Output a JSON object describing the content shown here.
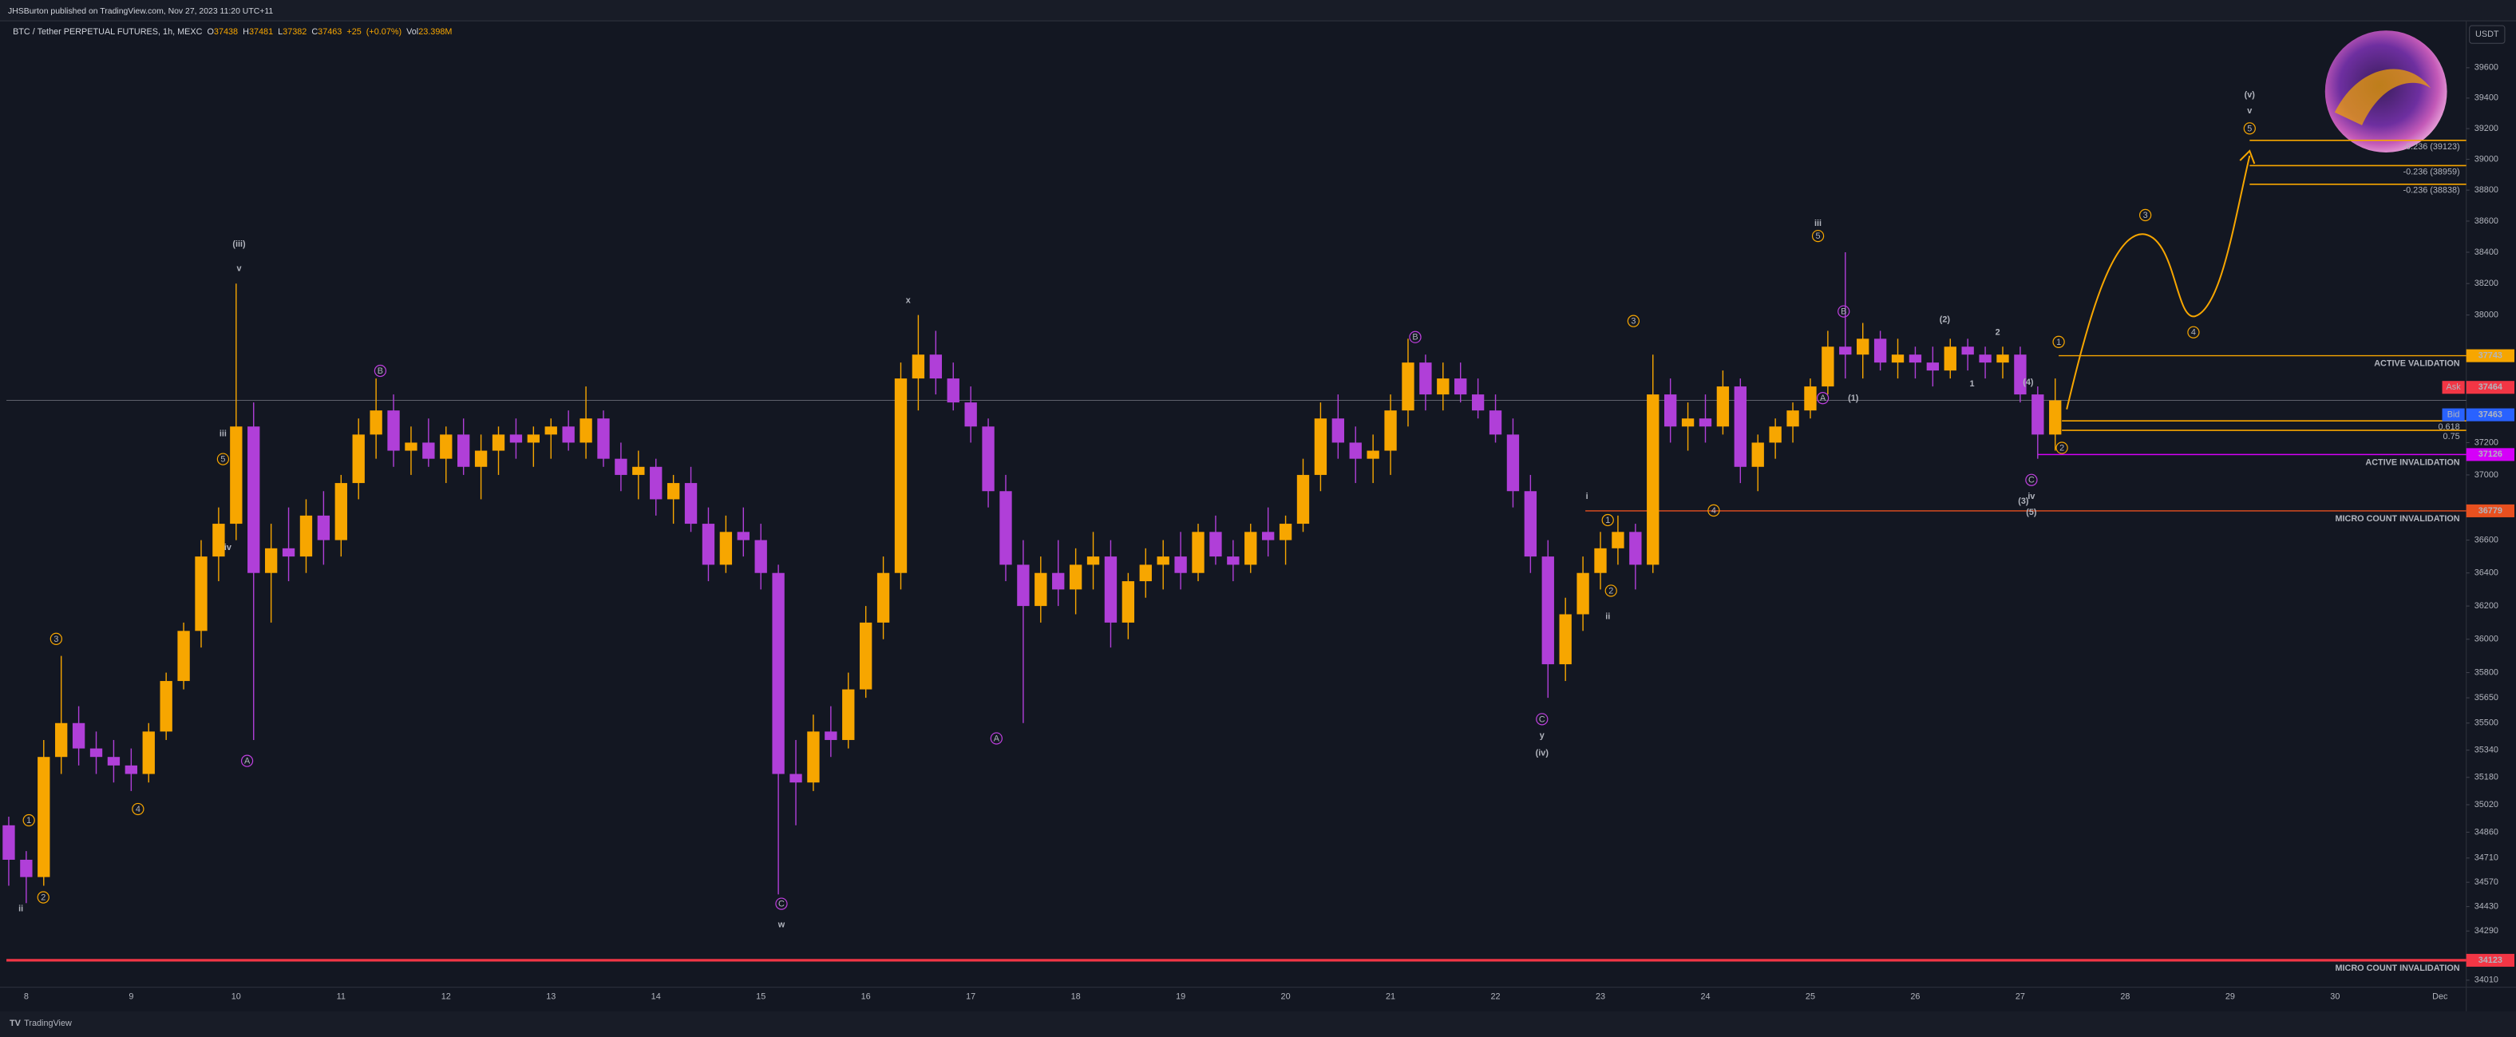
{
  "header": {
    "publisher": "JHSBurton published on TradingView.com, Nov 27, 2023 11:20 UTC+11",
    "brand": "TradingView"
  },
  "chart_data": {
    "type": "candlestick",
    "title": "BTC / Tether PERPETUAL FUTURES, 1h, MEXC",
    "ohlc_legend": [
      {
        "prefix": "O",
        "value": 37438
      },
      {
        "prefix": "H",
        "value": 37481
      },
      {
        "prefix": "L",
        "value": 37382
      },
      {
        "prefix": "C",
        "value": 37463
      },
      {
        "value": 25,
        "label": "+25"
      },
      {
        "value": 0.07,
        "label": "(+0.07%)"
      },
      {
        "prefix": "Vol",
        "value": 23398000,
        "label": "23.398M"
      }
    ],
    "currency": "USDT",
    "up_color": "#f7a600",
    "down_color": "#b03fd8",
    "log": true,
    "grid": false,
    "ylim": [
      33970,
      39900
    ],
    "yticks": [
      39600,
      39400,
      39200,
      39000,
      38800,
      38600,
      38400,
      38200,
      38000,
      37200,
      37000,
      36600,
      36400,
      36200,
      36000,
      35800,
      35650,
      35500,
      35340,
      35180,
      35020,
      34860,
      34710,
      34570,
      34430,
      34290,
      34010
    ],
    "categories": [
      null,
      "8",
      null,
      null,
      null,
      null,
      null,
      "9",
      null,
      null,
      null,
      null,
      null,
      "10",
      null,
      null,
      null,
      null,
      null,
      "11",
      null,
      null,
      null,
      null,
      null,
      "12",
      null,
      null,
      null,
      null,
      null,
      "13",
      null,
      null,
      null,
      null,
      null,
      "14",
      null,
      null,
      null,
      null,
      null,
      "15",
      null,
      null,
      null,
      null,
      null,
      "16",
      null,
      null,
      null,
      null,
      null,
      "17",
      null,
      null,
      null,
      null,
      null,
      "18",
      null,
      null,
      null,
      null,
      null,
      "19",
      null,
      null,
      null,
      null,
      null,
      "20",
      null,
      null,
      null,
      null,
      null,
      "21",
      null,
      null,
      null,
      null,
      null,
      "22",
      null,
      null,
      null,
      null,
      null,
      "23",
      null,
      null,
      null,
      null,
      null,
      "24",
      null,
      null,
      null,
      null,
      null,
      "25",
      null,
      null,
      null,
      null,
      null,
      "26",
      null,
      null,
      null,
      null,
      null,
      "27",
      null,
      null,
      null,
      null,
      null,
      "28",
      null,
      null,
      null,
      null,
      null,
      "29",
      null,
      null,
      null,
      null,
      null,
      "30",
      null,
      null,
      null,
      null,
      null,
      "Dec",
      null
    ],
    "open": [
      34900,
      34700,
      34600,
      35300,
      35500,
      35350,
      35300,
      35250,
      35200,
      35450,
      35750,
      36050,
      36500,
      36700,
      37300,
      36400,
      36550,
      36500,
      36750,
      36600,
      36950,
      37250,
      37400,
      37150,
      37200,
      37100,
      37250,
      37050,
      37150,
      37250,
      37200,
      37250,
      37300,
      37200,
      37350,
      37100,
      37000,
      37050,
      36850,
      36950,
      36700,
      36450,
      36650,
      36600,
      36400,
      35200,
      35150,
      35450,
      35400,
      35700,
      36100,
      36400,
      37600,
      37750,
      37600,
      37450,
      37300,
      36900,
      36450,
      36200,
      36400,
      36300,
      36450,
      36500,
      36100,
      36350,
      36450,
      36500,
      36400,
      36650,
      36500,
      36450,
      36650,
      36600,
      36700,
      37000,
      37350,
      37200,
      37100,
      37150,
      37400,
      37700,
      37500,
      37600,
      37500,
      37400,
      37250,
      36900,
      36500,
      35850,
      36150,
      36400,
      36550,
      36650,
      36450,
      37500,
      37300,
      37350,
      37300,
      37550,
      37050,
      37200,
      37300,
      37400,
      37550,
      37800,
      37750,
      37850,
      37700,
      37750,
      37700,
      37650,
      37800,
      37750,
      37700,
      37750,
      37500,
      37250,
      null,
      null,
      null,
      null,
      null,
      null,
      null,
      null,
      null,
      null,
      null,
      null,
      null,
      null,
      null,
      null,
      null,
      null,
      null,
      null,
      null,
      null,
      null
    ],
    "high": [
      34950,
      34750,
      35400,
      35900,
      35600,
      35450,
      35400,
      35350,
      35500,
      35800,
      36100,
      36600,
      36800,
      38200,
      37450,
      36700,
      36800,
      36850,
      36900,
      37000,
      37350,
      37600,
      37500,
      37300,
      37350,
      37300,
      37350,
      37250,
      37300,
      37350,
      37300,
      37350,
      37400,
      37550,
      37400,
      37200,
      37150,
      37100,
      37000,
      37050,
      36800,
      36750,
      36800,
      36700,
      36450,
      35400,
      35550,
      35600,
      35800,
      36200,
      36500,
      37700,
      38000,
      37900,
      37700,
      37550,
      37350,
      37000,
      36600,
      36500,
      36600,
      36550,
      36650,
      36600,
      36400,
      36550,
      36600,
      36650,
      36700,
      36750,
      36600,
      36700,
      36800,
      36750,
      37100,
      37450,
      37500,
      37300,
      37250,
      37500,
      37850,
      37750,
      37700,
      37700,
      37600,
      37500,
      37350,
      37000,
      36600,
      36250,
      36500,
      36650,
      36750,
      36700,
      37750,
      37600,
      37450,
      37500,
      37650,
      37600,
      37250,
      37350,
      37450,
      37600,
      37900,
      38400,
      37950,
      37900,
      37850,
      37800,
      37800,
      37850,
      37850,
      37800,
      37800,
      37800,
      37550,
      37600,
      null,
      null,
      null,
      null,
      null,
      null,
      null,
      null,
      null,
      null,
      null,
      null,
      null,
      null,
      null,
      null,
      null,
      null,
      null,
      null,
      null,
      null,
      null
    ],
    "low": [
      34550,
      34450,
      34550,
      35200,
      35250,
      35200,
      35150,
      35100,
      35150,
      35400,
      35700,
      35950,
      36350,
      36600,
      35400,
      36100,
      36350,
      36400,
      36450,
      36500,
      36850,
      37100,
      37050,
      37000,
      37050,
      36950,
      37000,
      36850,
      37000,
      37100,
      37050,
      37100,
      37150,
      37100,
      37050,
      36900,
      36850,
      36750,
      36700,
      36650,
      36350,
      36400,
      36500,
      36300,
      34500,
      34900,
      35100,
      35300,
      35350,
      35650,
      36000,
      36300,
      37400,
      37500,
      37400,
      37200,
      36800,
      36350,
      35500,
      36100,
      36200,
      36150,
      36300,
      35950,
      36000,
      36250,
      36300,
      36300,
      36350,
      36450,
      36350,
      36400,
      36500,
      36450,
      36650,
      36900,
      37100,
      36950,
      36950,
      37000,
      37300,
      37400,
      37400,
      37450,
      37350,
      37200,
      36800,
      36400,
      35650,
      35750,
      36050,
      36300,
      36450,
      36300,
      36400,
      37200,
      37150,
      37200,
      37250,
      36950,
      36900,
      37100,
      37200,
      37350,
      37500,
      37600,
      37600,
      37650,
      37600,
      37600,
      37550,
      37600,
      37650,
      37600,
      37600,
      37450,
      37100,
      37150,
      null,
      null,
      null,
      null,
      null,
      null,
      null,
      null,
      null,
      null,
      null,
      null,
      null,
      null,
      null,
      null,
      null,
      null,
      null,
      null,
      null,
      null,
      null
    ],
    "close": [
      34700,
      34600,
      35300,
      35500,
      35350,
      35300,
      35250,
      35200,
      35450,
      35750,
      36050,
      36500,
      36700,
      37300,
      36400,
      36550,
      36500,
      36750,
      36600,
      36950,
      37250,
      37400,
      37150,
      37200,
      37100,
      37250,
      37050,
      37150,
      37250,
      37200,
      37250,
      37300,
      37200,
      37350,
      37100,
      37000,
      37050,
      36850,
      36950,
      36700,
      36450,
      36650,
      36600,
      36400,
      35200,
      35150,
      35450,
      35400,
      35700,
      36100,
      36400,
      37600,
      37750,
      37600,
      37450,
      37300,
      36900,
      36450,
      36200,
      36400,
      36300,
      36450,
      36500,
      36100,
      36350,
      36450,
      36500,
      36400,
      36650,
      36500,
      36450,
      36650,
      36600,
      36700,
      37000,
      37350,
      37200,
      37100,
      37150,
      37400,
      37700,
      37500,
      37600,
      37500,
      37400,
      37250,
      36900,
      36500,
      35850,
      36150,
      36400,
      36550,
      36650,
      36450,
      37500,
      37300,
      37350,
      37300,
      37550,
      37050,
      37200,
      37300,
      37400,
      37550,
      37800,
      37750,
      37850,
      37700,
      37750,
      37700,
      37650,
      37800,
      37750,
      37700,
      37750,
      37500,
      37250,
      37463,
      null,
      null,
      null,
      null,
      null,
      null,
      null,
      null,
      null,
      null,
      null,
      null,
      null,
      null,
      null,
      null,
      null,
      null,
      null,
      null,
      null,
      null,
      null
    ],
    "levels": [
      {
        "value": 37743,
        "label": "ACTIVE VALIDATION",
        "color": "#f7a600"
      },
      {
        "value": 37126,
        "label": "ACTIVE INVALIDATION",
        "color": "#d500f9"
      },
      {
        "value": 36779,
        "label": "MICRO COUNT INVALIDATION",
        "color": "#e8501f"
      },
      {
        "value": 34123,
        "label": "MICRO COUNT INVALIDATION",
        "color": "#f23645"
      }
    ],
    "fib_levels": [
      {
        "ratio": -0.236,
        "price": 39123,
        "label": "-0.236 (39123)"
      },
      {
        "ratio": -0.236,
        "price": 38959,
        "label": "-0.236 (38959)"
      },
      {
        "ratio": -0.236,
        "price": 38838,
        "label": "-0.236 (38838)"
      },
      {
        "ratio": 0.618,
        "price": 37335
      },
      {
        "ratio": 0.75,
        "price": 37276
      }
    ],
    "fib_color": "#f7a600",
    "price_tags": [
      {
        "label": "Ask",
        "value": 37464,
        "color": "#f23645"
      },
      {
        "label": "Bid",
        "value": 37463,
        "color": "#2962ff"
      }
    ],
    "annotations": [
      {
        "text": "ii",
        "color": "#f7a600"
      },
      {
        "text": "1",
        "color": "#f7a600",
        "circled": true
      },
      {
        "text": "2",
        "color": "#f7a600",
        "circled": true
      },
      {
        "text": "3",
        "color": "#f7a600",
        "circled": true
      },
      {
        "text": "4",
        "color": "#f7a600",
        "circled": true
      },
      {
        "text": "iii",
        "color": "#f7a600"
      },
      {
        "text": "5",
        "color": "#f7a600",
        "circled": true
      },
      {
        "text": "iv",
        "color": "#f7a600"
      },
      {
        "text": "v",
        "color": "#f7a600"
      },
      {
        "text": "(iii)",
        "color": "#f7a600"
      },
      {
        "text": "A",
        "color": "#c040e0",
        "circled": true
      },
      {
        "text": "B",
        "color": "#c040e0",
        "circled": true
      },
      {
        "text": "x",
        "color": "#c040e0"
      },
      {
        "text": "C",
        "color": "#c040e0",
        "circled": true
      },
      {
        "text": "w",
        "color": "#c040e0"
      },
      {
        "text": "A",
        "color": "#c040e0",
        "circled": true
      },
      {
        "text": "B",
        "color": "#c040e0",
        "circled": true
      },
      {
        "text": "i",
        "color": "#f7a600"
      },
      {
        "text": "1",
        "color": "#f7a600",
        "circled": true
      },
      {
        "text": "2",
        "color": "#f7a600",
        "circled": true
      },
      {
        "text": "ii",
        "color": "#f7a600"
      },
      {
        "text": "3",
        "color": "#f7a600",
        "circled": true
      },
      {
        "text": "4",
        "color": "#f7a600",
        "circled": true
      },
      {
        "text": "C",
        "color": "#c040e0",
        "circled": true
      },
      {
        "text": "y",
        "color": "#c040e0"
      },
      {
        "text": "(iv)",
        "color": "#f7a600"
      },
      {
        "text": "iii",
        "color": "#f7a600"
      },
      {
        "text": "5",
        "color": "#f7a600",
        "circled": true
      },
      {
        "text": "B",
        "color": "#c040e0",
        "circled": true
      },
      {
        "text": "A",
        "color": "#c040e0",
        "circled": true
      },
      {
        "text": "(1)",
        "color": "#c040e0"
      },
      {
        "text": "(2)",
        "color": "#c040e0"
      },
      {
        "text": "1",
        "color": "#c040e0"
      },
      {
        "text": "2",
        "color": "#c040e0"
      },
      {
        "text": "(4)",
        "color": "#c040e0"
      },
      {
        "text": "(3)",
        "color": "#c040e0"
      },
      {
        "text": "(5)",
        "color": "#c040e0"
      },
      {
        "text": "C",
        "color": "#c040e0",
        "circled": true
      },
      {
        "text": "iv",
        "color": "#f7a600"
      },
      {
        "text": "1",
        "color": "#f7a600",
        "circled": true
      },
      {
        "text": "2",
        "color": "#f7a600",
        "circled": true
      },
      {
        "text": "3",
        "color": "#f7a600",
        "circled": true
      },
      {
        "text": "4",
        "color": "#f7a600",
        "circled": true
      },
      {
        "text": "5",
        "color": "#f7a600",
        "circled": true
      },
      {
        "text": "(v)",
        "color": "#f7a600"
      },
      {
        "text": "v",
        "color": "#f7a600"
      }
    ]
  }
}
